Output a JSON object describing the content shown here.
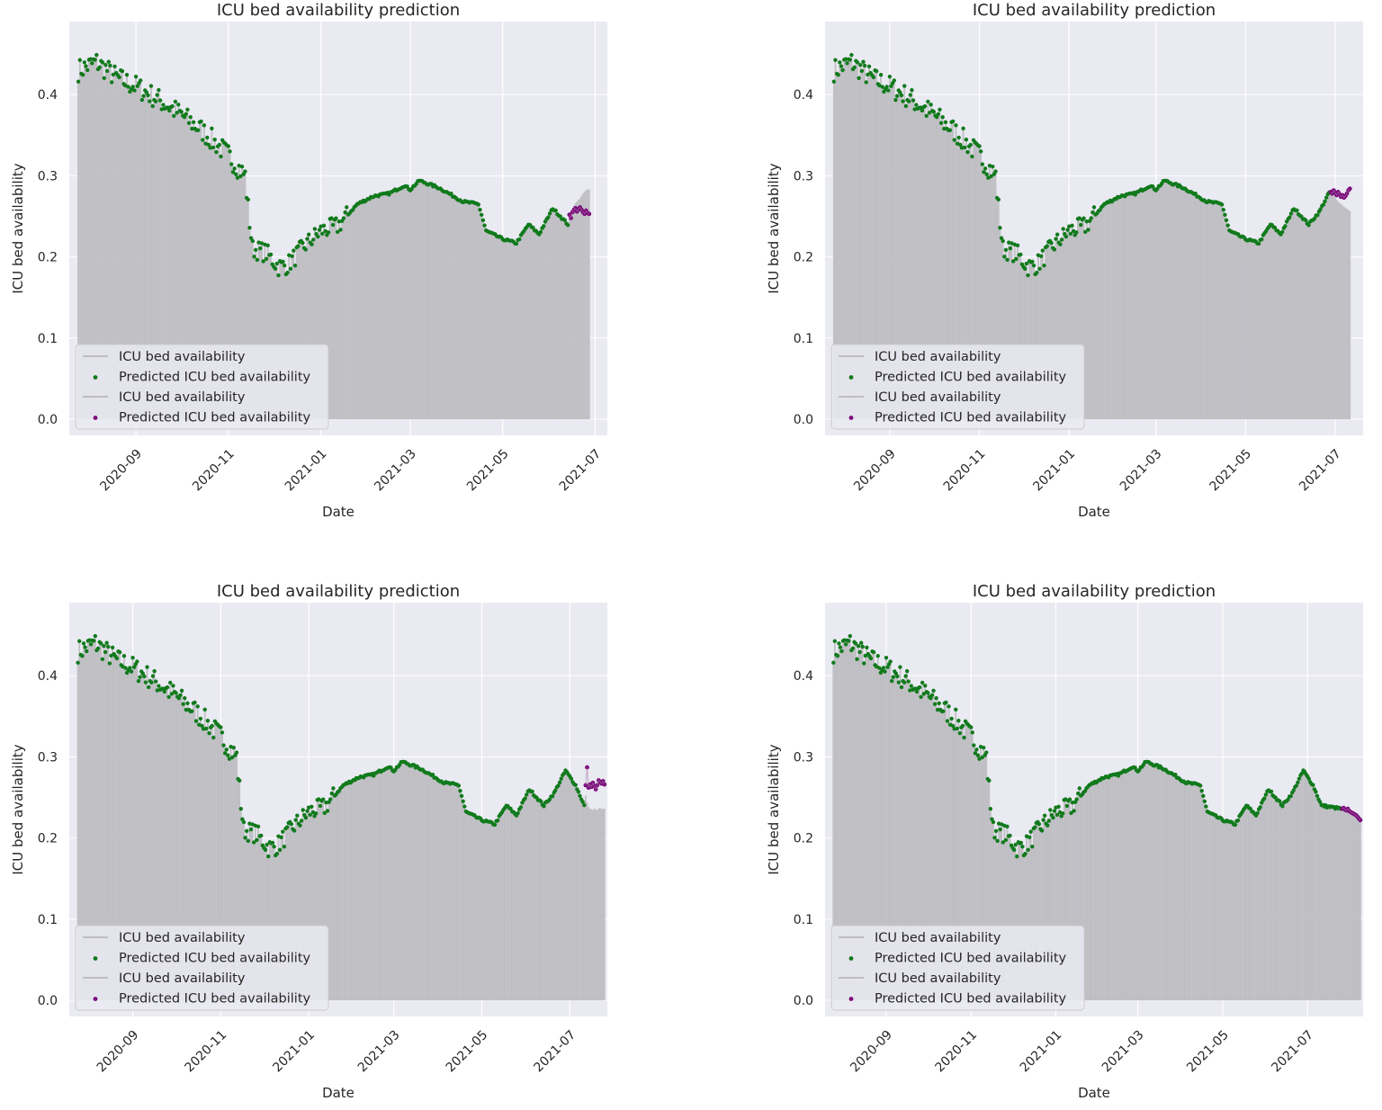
{
  "chart_data": [
    {
      "type": "bar",
      "title": "ICU bed availability prediction",
      "xlabel": "Date",
      "ylabel": "ICU bed availability",
      "xlim": [
        "2020-07-19",
        "2021-07-09"
      ],
      "ylim": [
        -0.02,
        0.49
      ],
      "xticks": [
        "2020-09",
        "2020-11",
        "2021-01",
        "2021-03",
        "2021-05",
        "2021-07"
      ],
      "yticks": [
        "0.0",
        "0.1",
        "0.2",
        "0.3",
        "0.4"
      ],
      "grid": true,
      "legend_position": "lower-left",
      "legend": [
        "ICU bed availability",
        "Predicted ICU bed availability",
        "ICU bed availability",
        "Predicted ICU bed availability"
      ],
      "history_end": "2021-06-13",
      "pred_end": "2021-06-27",
      "pred_series": [
        0.252,
        0.248,
        0.255,
        0.258,
        0.26,
        0.256,
        0.259,
        0.261,
        0.258,
        0.255,
        0.253,
        0.257,
        0.254,
        0.253
      ],
      "actual_future": [
        0.246,
        0.252,
        0.258,
        0.263,
        0.266,
        0.268,
        0.27,
        0.272,
        0.275,
        0.278,
        0.28,
        0.282,
        0.283,
        0.283
      ]
    },
    {
      "type": "bar",
      "title": "ICU bed availability prediction",
      "xlabel": "Date",
      "ylabel": "ICU bed availability",
      "xlim": [
        "2020-07-19",
        "2021-07-20"
      ],
      "ylim": [
        -0.02,
        0.49
      ],
      "xticks": [
        "2020-09",
        "2020-11",
        "2021-01",
        "2021-03",
        "2021-05",
        "2021-07"
      ],
      "yticks": [
        "0.0",
        "0.1",
        "0.2",
        "0.3",
        "0.4"
      ],
      "grid": true,
      "legend_position": "lower-left",
      "legend": [
        "ICU bed availability",
        "Predicted ICU bed availability",
        "ICU bed availability",
        "Predicted ICU bed availability"
      ],
      "history_end": "2021-06-27",
      "pred_end": "2021-07-11",
      "pred_series": [
        0.28,
        0.278,
        0.282,
        0.279,
        0.276,
        0.28,
        0.277,
        0.274,
        0.276,
        0.273,
        0.275,
        0.278,
        0.282,
        0.284
      ],
      "actual_future": [
        0.281,
        0.279,
        0.276,
        0.273,
        0.27,
        0.268,
        0.266,
        0.265,
        0.263,
        0.262,
        0.26,
        0.259,
        0.258,
        0.256
      ]
    },
    {
      "type": "bar",
      "title": "ICU bed availability prediction",
      "xlabel": "Date",
      "ylabel": "ICU bed availability",
      "xlim": [
        "2020-07-19",
        "2021-07-27"
      ],
      "ylim": [
        -0.02,
        0.49
      ],
      "xticks": [
        "2020-09",
        "2020-11",
        "2021-01",
        "2021-03",
        "2021-05",
        "2021-07"
      ],
      "yticks": [
        "0.0",
        "0.1",
        "0.2",
        "0.3",
        "0.4"
      ],
      "grid": true,
      "legend_position": "lower-left",
      "legend": [
        "ICU bed availability",
        "Predicted ICU bed availability",
        "ICU bed availability",
        "Predicted ICU bed availability"
      ],
      "history_end": "2021-07-11",
      "pred_end": "2021-07-25",
      "pred_series": [
        0.265,
        0.287,
        0.262,
        0.266,
        0.263,
        0.268,
        0.264,
        0.26,
        0.265,
        0.271,
        0.269,
        0.267,
        0.27,
        0.266
      ],
      "actual_future": [
        0.252,
        0.244,
        0.238,
        0.236,
        0.235,
        0.234,
        0.236,
        0.235,
        0.234,
        0.236,
        0.237,
        0.235,
        0.236,
        0.236
      ]
    },
    {
      "type": "bar",
      "title": "ICU bed availability prediction",
      "xlabel": "Date",
      "ylabel": "ICU bed availability",
      "xlim": [
        "2020-07-19",
        "2021-08-10"
      ],
      "ylim": [
        -0.02,
        0.49
      ],
      "xticks": [
        "2020-09",
        "2020-11",
        "2021-01",
        "2021-03",
        "2021-05",
        "2021-07"
      ],
      "yticks": [
        "0.0",
        "0.1",
        "0.2",
        "0.3",
        "0.4"
      ],
      "grid": true,
      "legend_position": "lower-left",
      "legend": [
        "ICU bed availability",
        "Predicted ICU bed availability",
        "ICU bed availability",
        "Predicted ICU bed availability"
      ],
      "history_end": "2021-07-25",
      "pred_end": "2021-08-08",
      "pred_series": [
        0.236,
        0.237,
        0.235,
        0.234,
        0.236,
        0.233,
        0.232,
        0.231,
        0.23,
        0.229,
        0.228,
        0.226,
        0.224,
        0.222
      ],
      "actual_future": [
        0.236,
        0.236,
        0.235,
        0.234,
        0.233,
        0.232,
        0.231,
        0.23,
        0.229,
        0.228,
        0.226,
        0.225,
        0.222,
        0.22
      ]
    }
  ],
  "history": {
    "start_date": "2020-07-25",
    "anchors": [
      [
        "2020-07-25",
        0.43
      ],
      [
        "2020-08-06",
        0.44
      ],
      [
        "2020-08-20",
        0.42
      ],
      [
        "2020-09-01",
        0.41
      ],
      [
        "2020-09-15",
        0.395
      ],
      [
        "2020-10-01",
        0.375
      ],
      [
        "2020-10-15",
        0.355
      ],
      [
        "2020-11-01",
        0.325
      ],
      [
        "2020-11-12",
        0.3
      ],
      [
        "2020-11-14",
        0.26
      ],
      [
        "2020-11-17",
        0.21
      ],
      [
        "2020-11-26",
        0.205
      ],
      [
        "2020-12-04",
        0.188
      ],
      [
        "2020-12-10",
        0.19
      ],
      [
        "2020-12-22",
        0.215
      ],
      [
        "2021-01-01",
        0.232
      ],
      [
        "2021-01-12",
        0.238
      ],
      [
        "2021-01-25",
        0.265
      ],
      [
        "2021-02-05",
        0.275
      ],
      [
        "2021-02-15",
        0.278
      ],
      [
        "2021-02-25",
        0.288
      ],
      [
        "2021-03-01",
        0.283
      ],
      [
        "2021-03-07",
        0.294
      ],
      [
        "2021-03-20",
        0.285
      ],
      [
        "2021-04-05",
        0.268
      ],
      [
        "2021-04-15",
        0.265
      ],
      [
        "2021-04-20",
        0.232
      ],
      [
        "2021-05-01",
        0.222
      ],
      [
        "2021-05-10",
        0.217
      ],
      [
        "2021-05-18",
        0.24
      ],
      [
        "2021-05-25",
        0.228
      ],
      [
        "2021-06-03",
        0.26
      ],
      [
        "2021-06-13",
        0.24
      ],
      [
        "2021-06-20",
        0.255
      ],
      [
        "2021-06-28",
        0.283
      ],
      [
        "2021-07-05",
        0.265
      ],
      [
        "2021-07-11",
        0.24
      ],
      [
        "2021-07-25",
        0.236
      ]
    ]
  }
}
